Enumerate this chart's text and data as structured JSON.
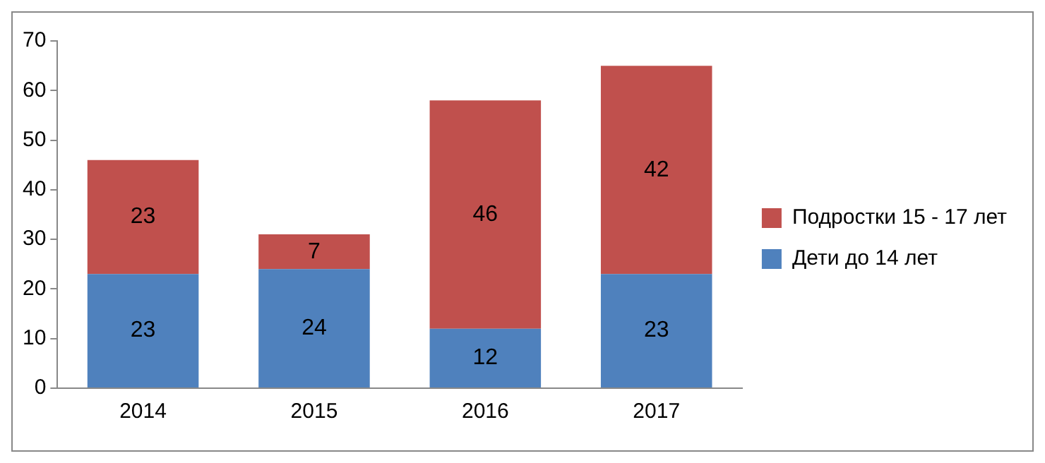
{
  "chart_data": {
    "type": "bar",
    "stacked": true,
    "categories": [
      "2014",
      "2015",
      "2016",
      "2017"
    ],
    "series": [
      {
        "name": "Дети до 14 лет",
        "color": "#4f81bd",
        "values": [
          23,
          24,
          12,
          23
        ]
      },
      {
        "name": "Подростки 15 - 17 лет",
        "color": "#c0504d",
        "values": [
          23,
          7,
          46,
          42
        ]
      }
    ],
    "ylim": [
      0,
      70
    ],
    "yticks": [
      0,
      10,
      20,
      30,
      40,
      50,
      60,
      70
    ],
    "data_labels": true,
    "legend": "right"
  }
}
